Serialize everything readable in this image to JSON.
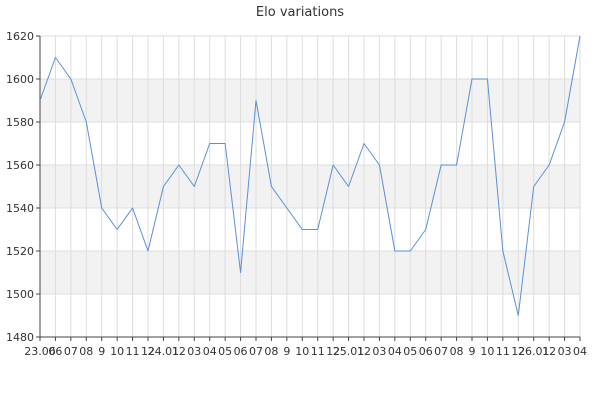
{
  "chart_data": {
    "type": "line",
    "title": "Elo variations",
    "xlabel": "",
    "ylabel": "",
    "ylim": [
      1480,
      1620
    ],
    "yticks": [
      1480,
      1500,
      1520,
      1540,
      1560,
      1580,
      1600,
      1620
    ],
    "grid": true,
    "legend": "none",
    "band_color": "#f2f2f2",
    "grid_color": "#dddddd",
    "axis_color": "#444444",
    "line_color": "#5b8fd8",
    "x_tick_labels": [
      "23.06",
      "06",
      "07",
      "08",
      "9",
      "10",
      "11",
      "12",
      "24.01",
      "12",
      "03",
      "04",
      "05",
      "06",
      "07",
      "08",
      "9",
      "10",
      "11",
      "12",
      "25.01",
      "12",
      "03",
      "04",
      "05",
      "06",
      "07",
      "08",
      "9",
      "10",
      "11",
      "12",
      "26.01",
      "12",
      "03",
      "04"
    ],
    "series": [
      {
        "values": [
          1590,
          1610,
          1600,
          1580,
          1540,
          1530,
          1540,
          1520,
          1550,
          1560,
          1550,
          1570,
          1570,
          1510,
          1590,
          1550,
          1540,
          1530,
          1530,
          1560,
          1550,
          1570,
          1560,
          1520,
          1520,
          1530,
          1560,
          1560,
          1600,
          1600,
          1520,
          1490,
          1550,
          1560,
          1580,
          1620
        ]
      }
    ]
  }
}
